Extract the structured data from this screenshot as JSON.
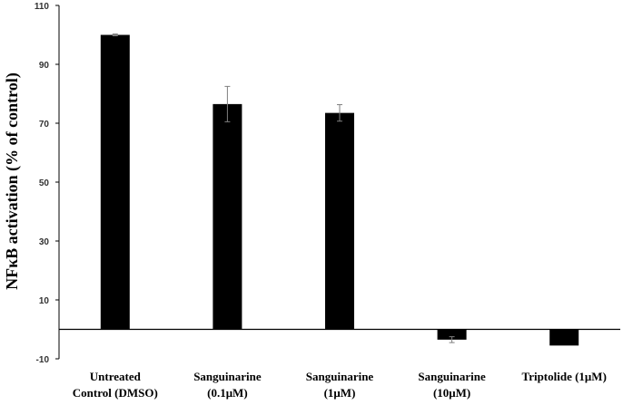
{
  "chart_data": {
    "type": "bar",
    "title": "",
    "xlabel": "",
    "ylabel": "NFκB activation  (% of control)",
    "ylim": [
      -10,
      110
    ],
    "yticks": [
      -10,
      10,
      30,
      50,
      70,
      90,
      110
    ],
    "grid": false,
    "legend": "none",
    "categories": [
      [
        "Untreated",
        "Control (DMSO)"
      ],
      [
        "Sanguinarine",
        "(0.1μM)"
      ],
      [
        "Sanguinarine",
        "(1μM)"
      ],
      [
        "Sanguinarine",
        "(10μM)"
      ],
      [
        "Triptolide  (1μM)"
      ]
    ],
    "series": [
      {
        "values": [
          100,
          76.5,
          73.5,
          -3.5,
          -5.5
        ],
        "error": [
          0.3,
          6,
          2.8,
          1,
          0
        ]
      }
    ],
    "colors": {
      "bar": "#000000",
      "axis": "#000000",
      "errorbar": "#7f7f7f"
    }
  }
}
